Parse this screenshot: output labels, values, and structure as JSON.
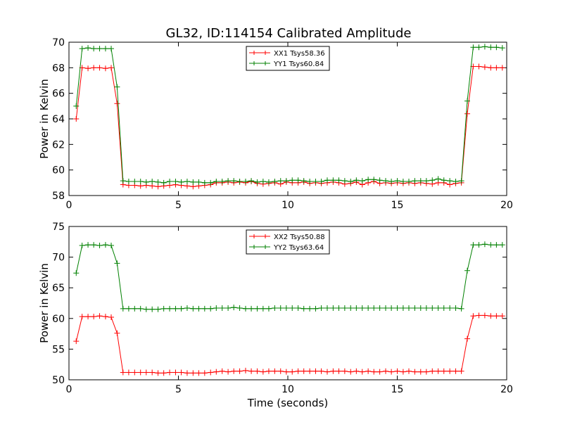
{
  "figure": {
    "title": "GL32, ID:114154 Calibrated Amplitude"
  },
  "chart_data": [
    {
      "type": "line",
      "title": "GL32, ID:114154 Calibrated Amplitude",
      "xlabel": "",
      "ylabel": "Power in Kelvin",
      "xlim": [
        0,
        20
      ],
      "ylim": [
        58,
        70
      ],
      "xticks": [
        0,
        5,
        10,
        15,
        20
      ],
      "yticks": [
        58,
        60,
        62,
        64,
        66,
        68,
        70
      ],
      "grid": false,
      "legend_position": "top-center",
      "x": [
        0.33,
        0.6,
        0.87,
        1.13,
        1.4,
        1.67,
        1.93,
        2.2,
        2.47,
        2.73,
        3.0,
        3.27,
        3.53,
        3.8,
        4.07,
        4.33,
        4.6,
        4.87,
        5.13,
        5.4,
        5.67,
        5.93,
        6.2,
        6.47,
        6.73,
        7.0,
        7.27,
        7.53,
        7.8,
        8.07,
        8.33,
        8.6,
        8.87,
        9.13,
        9.4,
        9.67,
        9.93,
        10.2,
        10.47,
        10.73,
        11.0,
        11.27,
        11.53,
        11.8,
        12.07,
        12.33,
        12.6,
        12.87,
        13.13,
        13.4,
        13.67,
        13.93,
        14.2,
        14.47,
        14.73,
        15.0,
        15.27,
        15.53,
        15.8,
        16.07,
        16.33,
        16.6,
        16.87,
        17.13,
        17.4,
        17.67,
        17.93,
        18.2,
        18.47,
        18.73,
        19.0,
        19.27,
        19.53,
        19.8
      ],
      "series": [
        {
          "name": "XX1 Tsys58.36",
          "color": "#ff0000",
          "values": [
            64.0,
            68.0,
            67.95,
            68.0,
            68.0,
            67.95,
            68.0,
            65.2,
            58.85,
            58.8,
            58.8,
            58.75,
            58.8,
            58.75,
            58.7,
            58.75,
            58.8,
            58.85,
            58.8,
            58.75,
            58.7,
            58.75,
            58.8,
            58.85,
            59.0,
            59.0,
            59.05,
            59.0,
            59.05,
            59.0,
            59.1,
            58.95,
            58.9,
            58.95,
            59.0,
            58.9,
            59.05,
            59.0,
            59.0,
            59.05,
            58.95,
            59.0,
            58.95,
            59.0,
            59.05,
            59.0,
            58.9,
            58.95,
            59.05,
            58.85,
            59.0,
            59.1,
            58.95,
            59.0,
            58.95,
            59.0,
            58.95,
            59.0,
            58.95,
            59.0,
            58.95,
            58.9,
            59.0,
            59.0,
            58.85,
            58.95,
            59.0,
            64.4,
            68.1,
            68.1,
            68.05,
            68.0,
            68.0,
            68.0
          ]
        },
        {
          "name": "YY1 Tsys60.84",
          "color": "#008000",
          "values": [
            65.0,
            69.5,
            69.55,
            69.5,
            69.5,
            69.5,
            69.5,
            66.5,
            59.15,
            59.1,
            59.1,
            59.1,
            59.05,
            59.1,
            59.05,
            59.0,
            59.1,
            59.1,
            59.05,
            59.1,
            59.05,
            59.05,
            59.0,
            59.0,
            59.1,
            59.1,
            59.15,
            59.15,
            59.1,
            59.1,
            59.15,
            59.05,
            59.1,
            59.05,
            59.1,
            59.15,
            59.15,
            59.2,
            59.2,
            59.15,
            59.1,
            59.1,
            59.1,
            59.2,
            59.2,
            59.2,
            59.15,
            59.1,
            59.2,
            59.15,
            59.25,
            59.25,
            59.2,
            59.15,
            59.1,
            59.15,
            59.1,
            59.1,
            59.15,
            59.15,
            59.15,
            59.2,
            59.3,
            59.2,
            59.15,
            59.1,
            59.15,
            65.4,
            69.6,
            69.6,
            69.65,
            69.6,
            69.6,
            69.55
          ]
        }
      ]
    },
    {
      "type": "line",
      "title": "",
      "xlabel": "Time (seconds)",
      "ylabel": "Power in Kelvin",
      "xlim": [
        0,
        20
      ],
      "ylim": [
        50,
        75
      ],
      "xticks": [
        0,
        5,
        10,
        15,
        20
      ],
      "yticks": [
        50,
        55,
        60,
        65,
        70,
        75
      ],
      "grid": false,
      "legend_position": "top-center",
      "x": [
        0.33,
        0.6,
        0.87,
        1.13,
        1.4,
        1.67,
        1.93,
        2.2,
        2.47,
        2.73,
        3.0,
        3.27,
        3.53,
        3.8,
        4.07,
        4.33,
        4.6,
        4.87,
        5.13,
        5.4,
        5.67,
        5.93,
        6.2,
        6.47,
        6.73,
        7.0,
        7.27,
        7.53,
        7.8,
        8.07,
        8.33,
        8.6,
        8.87,
        9.13,
        9.4,
        9.67,
        9.93,
        10.2,
        10.47,
        10.73,
        11.0,
        11.27,
        11.53,
        11.8,
        12.07,
        12.33,
        12.6,
        12.87,
        13.13,
        13.4,
        13.67,
        13.93,
        14.2,
        14.47,
        14.73,
        15.0,
        15.27,
        15.53,
        15.8,
        16.07,
        16.33,
        16.6,
        16.87,
        17.13,
        17.4,
        17.67,
        17.93,
        18.2,
        18.47,
        18.73,
        19.0,
        19.27,
        19.53,
        19.8
      ],
      "series": [
        {
          "name": "XX2 Tsys50.88",
          "color": "#ff0000",
          "values": [
            56.3,
            60.3,
            60.3,
            60.3,
            60.4,
            60.3,
            60.2,
            57.6,
            51.2,
            51.2,
            51.2,
            51.2,
            51.2,
            51.2,
            51.1,
            51.1,
            51.2,
            51.2,
            51.2,
            51.1,
            51.1,
            51.1,
            51.1,
            51.2,
            51.3,
            51.4,
            51.3,
            51.4,
            51.4,
            51.5,
            51.4,
            51.4,
            51.3,
            51.4,
            51.4,
            51.4,
            51.3,
            51.3,
            51.4,
            51.4,
            51.4,
            51.4,
            51.4,
            51.3,
            51.4,
            51.4,
            51.4,
            51.3,
            51.4,
            51.3,
            51.4,
            51.3,
            51.3,
            51.4,
            51.3,
            51.4,
            51.3,
            51.4,
            51.3,
            51.3,
            51.3,
            51.4,
            51.4,
            51.4,
            51.4,
            51.4,
            51.4,
            56.7,
            60.4,
            60.5,
            60.5,
            60.4,
            60.4,
            60.4
          ]
        },
        {
          "name": "YY2 Tsys63.64",
          "color": "#008000",
          "values": [
            67.4,
            71.9,
            72.0,
            72.0,
            71.9,
            72.0,
            71.9,
            69.0,
            61.6,
            61.6,
            61.6,
            61.6,
            61.5,
            61.5,
            61.5,
            61.6,
            61.6,
            61.6,
            61.6,
            61.7,
            61.6,
            61.6,
            61.6,
            61.6,
            61.7,
            61.7,
            61.7,
            61.8,
            61.7,
            61.6,
            61.6,
            61.6,
            61.6,
            61.6,
            61.7,
            61.7,
            61.7,
            61.7,
            61.7,
            61.6,
            61.6,
            61.6,
            61.7,
            61.7,
            61.7,
            61.7,
            61.7,
            61.7,
            61.7,
            61.7,
            61.7,
            61.7,
            61.7,
            61.7,
            61.7,
            61.7,
            61.7,
            61.7,
            61.7,
            61.7,
            61.7,
            61.7,
            61.7,
            61.7,
            61.7,
            61.7,
            61.6,
            67.8,
            72.0,
            72.0,
            72.1,
            72.0,
            72.0,
            72.0
          ]
        }
      ]
    }
  ]
}
